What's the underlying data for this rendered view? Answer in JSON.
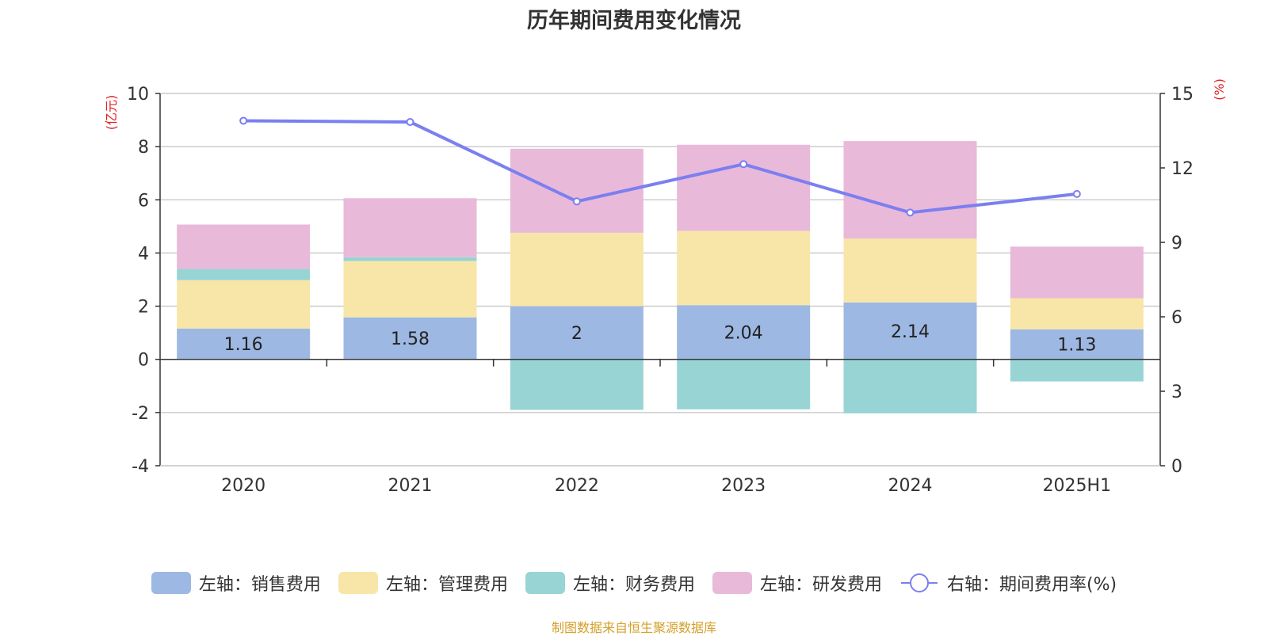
{
  "chart_data": {
    "type": "bar",
    "title": "历年期间费用变化情况",
    "categories": [
      "2020",
      "2021",
      "2022",
      "2023",
      "2024",
      "2025H1"
    ],
    "left_axis": {
      "unit_label": "(亿元)",
      "range": [
        -4,
        10
      ],
      "ticks": [
        "-4",
        "-2",
        "0",
        "2",
        "4",
        "6",
        "8",
        "10"
      ]
    },
    "right_axis": {
      "unit_label": "(%)",
      "range": [
        0,
        15
      ],
      "ticks": [
        "0",
        "3",
        "6",
        "9",
        "12",
        "15"
      ]
    },
    "grid": true,
    "legend_position": "bottom",
    "series": [
      {
        "name": "左轴：销售费用",
        "kind": "bar",
        "axis": "left",
        "color": "#9db8e2",
        "values": [
          1.16,
          1.58,
          2,
          2.04,
          2.14,
          1.13
        ],
        "labels": [
          "1.16",
          "1.58",
          "2",
          "2.04",
          "2.14",
          "1.13"
        ]
      },
      {
        "name": "左轴：管理费用",
        "kind": "bar",
        "axis": "left",
        "color": "#f8e6a8",
        "values": [
          1.82,
          2.12,
          2.76,
          2.79,
          2.4,
          1.17
        ]
      },
      {
        "name": "左轴：财务费用",
        "kind": "bar",
        "axis": "left",
        "color": "#98d4d4",
        "values": [
          0.42,
          0.14,
          -1.9,
          -1.88,
          -2.03,
          -0.83
        ]
      },
      {
        "name": "左轴：研发费用",
        "kind": "bar",
        "axis": "left",
        "color": "#e9b9d9",
        "values": [
          1.67,
          2.22,
          3.16,
          3.24,
          3.67,
          1.94
        ]
      },
      {
        "name": "右轴：期间费用率(%)",
        "kind": "line",
        "axis": "right",
        "color": "#7b7ff0",
        "values": [
          13.9,
          13.85,
          10.65,
          12.15,
          10.2,
          10.95
        ]
      }
    ],
    "source": "制图数据来自恒生聚源数据库"
  }
}
